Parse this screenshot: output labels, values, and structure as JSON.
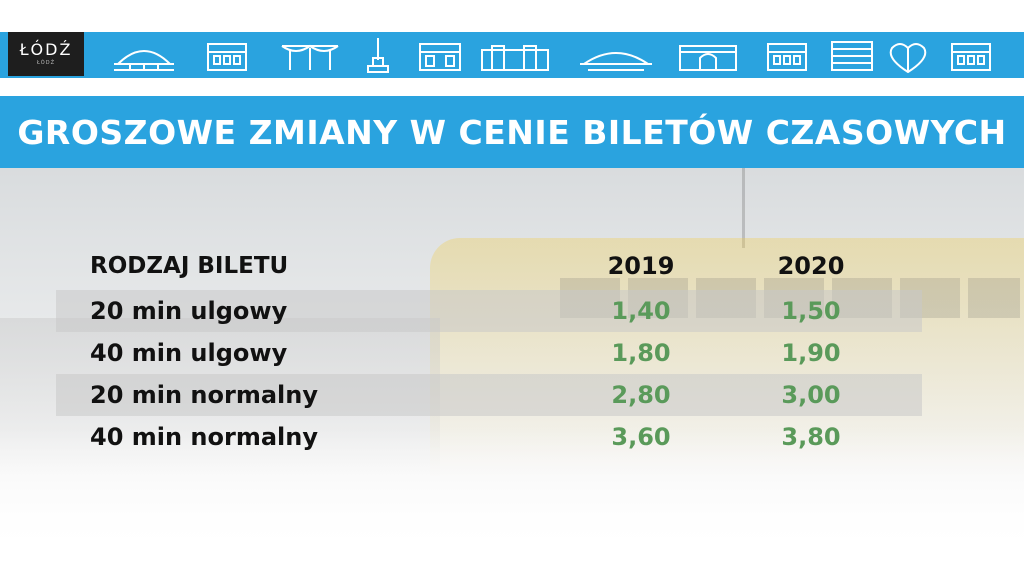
{
  "logo": {
    "text": "ŁÓDŹ",
    "subtext": "ŁÓDŹ"
  },
  "header_icons": [
    "railway-station-icon",
    "palace-icon",
    "umbrella-roof-icon",
    "monument-icon",
    "townhouse-icon",
    "factory-icon",
    "arena-icon",
    "gate-building-icon",
    "tenement-icon",
    "office-building-icon",
    "heart-sculpture-icon",
    "villa-icon"
  ],
  "title": "GROSZOWE ZMIANY W CENIE BILETÓW CZASOWYCH",
  "table": {
    "headers": {
      "type": "RODZAJ BILETU",
      "year1": "2019",
      "year2": "2020"
    },
    "rows": [
      {
        "name": "20 min ulgowy",
        "v2019": "1,40",
        "v2020": "1,50"
      },
      {
        "name": "40 min ulgowy",
        "v2019": "1,80",
        "v2020": "1,90"
      },
      {
        "name": "20 min normalny",
        "v2019": "2,80",
        "v2020": "3,00"
      },
      {
        "name": "40 min normalny",
        "v2019": "3,60",
        "v2020": "3,80"
      }
    ]
  },
  "colors": {
    "brand_blue": "#2aa3df",
    "value_green": "#5a9a5a",
    "logo_bg": "#1e1e1e"
  }
}
